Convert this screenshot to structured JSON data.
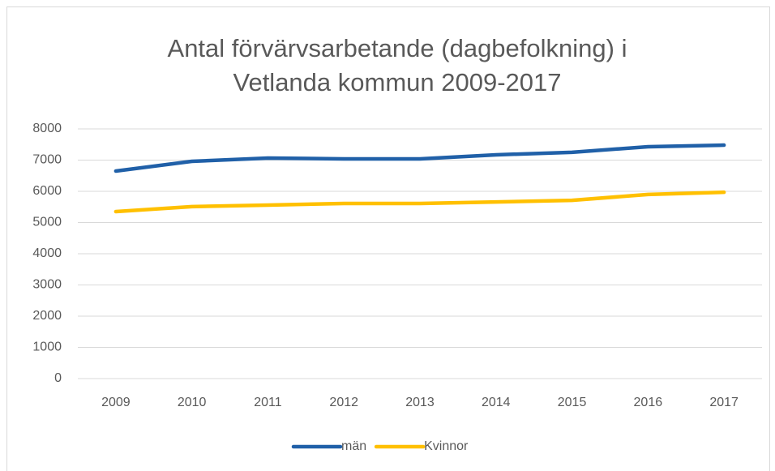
{
  "chart_data": {
    "type": "line",
    "title": [
      "Antal förvärvsarbetande (dagbefolkning) i",
      "Vetlanda kommun 2009-2017"
    ],
    "categories": [
      "2009",
      "2010",
      "2011",
      "2012",
      "2013",
      "2014",
      "2015",
      "2016",
      "2017"
    ],
    "series": [
      {
        "name": "män",
        "color": "#2060a8",
        "values": [
          6650,
          6960,
          7065,
          7040,
          7040,
          7170,
          7250,
          7430,
          7480
        ]
      },
      {
        "name": "Kvinnor",
        "color": "#ffc000",
        "values": [
          5350,
          5510,
          5560,
          5610,
          5610,
          5660,
          5710,
          5900,
          5970
        ]
      }
    ],
    "ylim": [
      0,
      8000
    ],
    "yticks": [
      0,
      1000,
      2000,
      3000,
      4000,
      5000,
      6000,
      7000,
      8000
    ],
    "grid": true,
    "legend": "bottom"
  }
}
